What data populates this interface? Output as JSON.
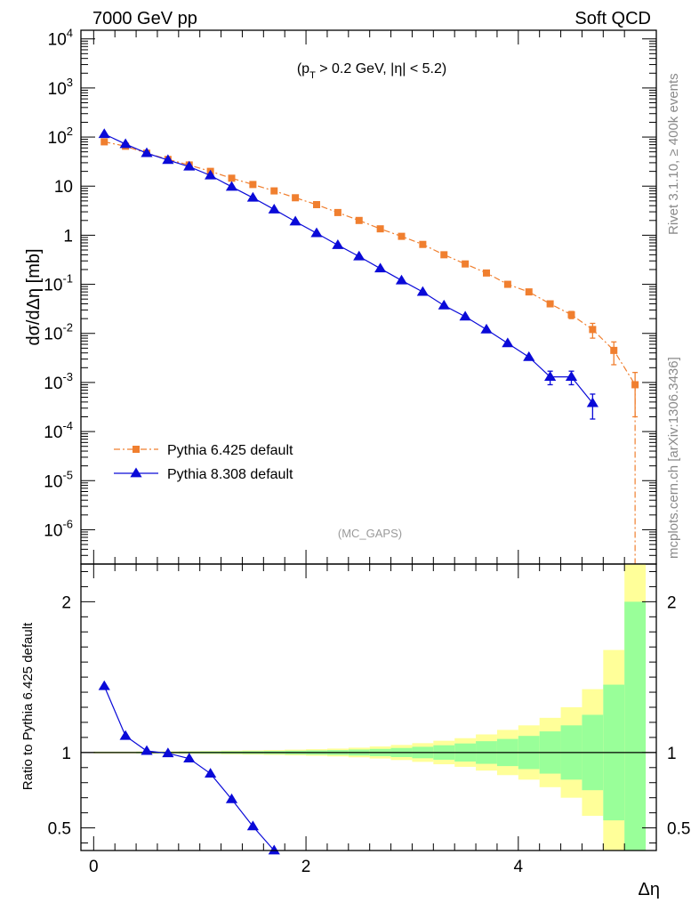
{
  "header": {
    "left": "7000 GeV pp",
    "right": "Soft QCD"
  },
  "side_labels": {
    "rivet": "Rivet 3.1.10, ≥ 400k events",
    "ref": "mcplots.cern.ch [arXiv:1306.3436]"
  },
  "chart_data": [
    {
      "type": "line",
      "panel": "main",
      "ylabel": "dσ/dΔη [mb]",
      "annotation": "(p_T > 0.2 GeV, |η| < 5.2)",
      "watermark": "(MC_GAPS)",
      "yscale": "log",
      "ylim": [
        2e-07,
        15000
      ],
      "xlim": [
        -0.12,
        5.3
      ],
      "y_tick_labels": [
        "10^-6",
        "10^-5",
        "10^-4",
        "10^-3",
        "10^-2",
        "10^-1",
        "1",
        "10",
        "10^2",
        "10^3",
        "10^4"
      ],
      "legend_placement": "lower-left",
      "series": [
        {
          "name": "Pythia 6.425 default",
          "color": "#f07f2f",
          "marker": "square",
          "linestyle": "dash-dot",
          "x": [
            0.1,
            0.3,
            0.5,
            0.7,
            0.9,
            1.1,
            1.3,
            1.5,
            1.7,
            1.9,
            2.1,
            2.3,
            2.5,
            2.7,
            2.9,
            3.1,
            3.3,
            3.5,
            3.7,
            3.9,
            4.1,
            4.3,
            4.5,
            4.7,
            4.9,
            5.1
          ],
          "y": [
            80,
            65,
            47,
            35,
            27,
            20,
            14.5,
            10.8,
            8.0,
            5.8,
            4.2,
            2.9,
            2.0,
            1.35,
            0.95,
            0.65,
            0.4,
            0.26,
            0.17,
            0.1,
            0.07,
            0.04,
            0.024,
            0.012,
            0.0045,
            0.0009
          ],
          "yerr": [
            0,
            0,
            0,
            0,
            0,
            0,
            0,
            0,
            0,
            0,
            0,
            0,
            0,
            0,
            0,
            0,
            0,
            0,
            0,
            0,
            0,
            0.004,
            0.004,
            0.004,
            0.0022,
            0.0007
          ]
        },
        {
          "name": "Pythia 8.308 default",
          "color": "#0a0ad8",
          "marker": "triangle",
          "linestyle": "solid",
          "x": [
            0.1,
            0.3,
            0.5,
            0.7,
            0.9,
            1.1,
            1.3,
            1.5,
            1.7,
            1.9,
            2.1,
            2.3,
            2.5,
            2.7,
            2.9,
            3.1,
            3.3,
            3.5,
            3.7,
            3.9,
            4.1,
            4.3,
            4.5,
            4.7
          ],
          "y": [
            115,
            72,
            47,
            34,
            25,
            16.5,
            9.7,
            5.8,
            3.35,
            1.9,
            1.1,
            0.63,
            0.37,
            0.21,
            0.12,
            0.07,
            0.037,
            0.022,
            0.012,
            0.0063,
            0.0033,
            0.0013,
            0.0013,
            0.00038
          ],
          "yerr": [
            0,
            0,
            0,
            0,
            0,
            0,
            0,
            0,
            0,
            0,
            0,
            0,
            0,
            0,
            0,
            0,
            0,
            0,
            0,
            0,
            0,
            0.0004,
            0.0004,
            0.0002
          ]
        }
      ]
    },
    {
      "type": "line",
      "panel": "ratio",
      "ylabel": "Ratio to Pythia 6.425 default",
      "xlabel": "Δη",
      "ylim": [
        0.35,
        2.25
      ],
      "xlim": [
        -0.12,
        5.3
      ],
      "x_ticks": [
        0,
        2,
        4
      ],
      "y_ticks": [
        0.5,
        1,
        2
      ],
      "reference_line": 1,
      "uncertainty_bands": {
        "x_edges": [
          0.0,
          0.2,
          0.4,
          0.6,
          0.8,
          1.0,
          1.2,
          1.4,
          1.6,
          1.8,
          2.0,
          2.2,
          2.4,
          2.6,
          2.8,
          3.0,
          3.2,
          3.4,
          3.6,
          3.8,
          4.0,
          4.2,
          4.4,
          4.6,
          4.8,
          5.0,
          5.2
        ],
        "stat": [
          0.004,
          0.004,
          0.005,
          0.005,
          0.006,
          0.007,
          0.008,
          0.009,
          0.01,
          0.012,
          0.014,
          0.016,
          0.02,
          0.024,
          0.03,
          0.038,
          0.048,
          0.06,
          0.075,
          0.09,
          0.11,
          0.14,
          0.18,
          0.25,
          0.45,
          1.0
        ],
        "total": [
          0.006,
          0.006,
          0.007,
          0.008,
          0.009,
          0.01,
          0.012,
          0.014,
          0.016,
          0.019,
          0.022,
          0.026,
          0.032,
          0.04,
          0.05,
          0.062,
          0.078,
          0.095,
          0.12,
          0.15,
          0.18,
          0.23,
          0.3,
          0.42,
          0.68,
          1.25
        ],
        "stat_color": "#99ff99",
        "total_color": "#ffff99"
      },
      "series": [
        {
          "name": "Pythia 8.308 default",
          "color": "#0a0ad8",
          "marker": "triangle",
          "x": [
            0.1,
            0.3,
            0.5,
            0.7,
            0.9,
            1.1,
            1.3,
            1.5,
            1.7
          ],
          "y": [
            1.44,
            1.11,
            1.01,
            0.995,
            0.96,
            0.86,
            0.69,
            0.51,
            0.35
          ]
        }
      ]
    }
  ]
}
